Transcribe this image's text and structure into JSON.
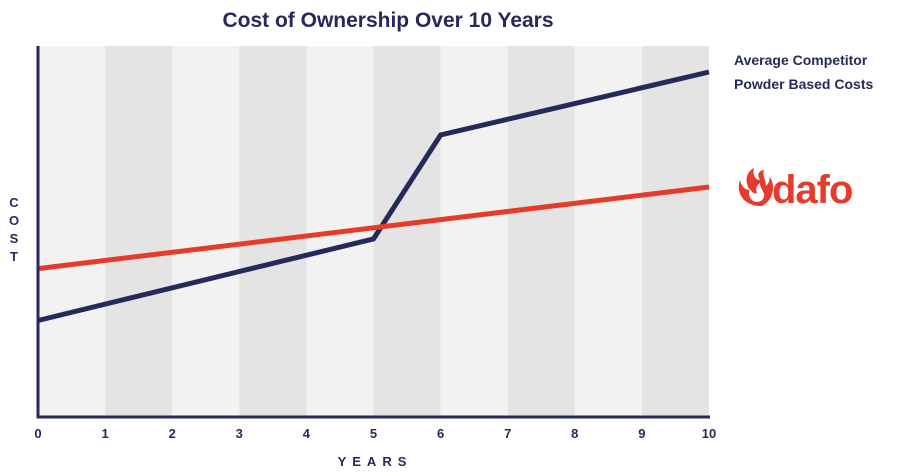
{
  "chart_data": {
    "type": "line",
    "title": "Cost of Ownership Over 10 Years",
    "xlabel": "YEARS",
    "ylabel": "COST",
    "x": [
      0,
      1,
      2,
      3,
      4,
      5,
      6,
      7,
      8,
      9,
      10
    ],
    "xlim": [
      0,
      10
    ],
    "ylim": [
      0,
      100
    ],
    "y_tick_labels": false,
    "grid": "alternating vertical bands",
    "series": [
      {
        "name": "Average Competitor Powder Based Costs",
        "color": "#262a5a",
        "points": [
          [
            0,
            26
          ],
          [
            5,
            48
          ],
          [
            6,
            76
          ],
          [
            10,
            93
          ]
        ]
      },
      {
        "name": "dafo",
        "color": "#e63b2a",
        "points": [
          [
            0,
            40
          ],
          [
            10,
            62
          ]
        ]
      }
    ],
    "legend": [
      {
        "type": "text",
        "lines": [
          "Average Competitor",
          "Powder Based Costs"
        ],
        "series": 0,
        "placement": "right, top"
      },
      {
        "type": "logo",
        "text": "dafo",
        "series": 1,
        "placement": "right, middle"
      }
    ]
  },
  "colors": {
    "band_light": "#f2f2f2",
    "band_dark": "#e4e4e4",
    "axis": "#262a5a",
    "accent": "#e63b2a"
  }
}
